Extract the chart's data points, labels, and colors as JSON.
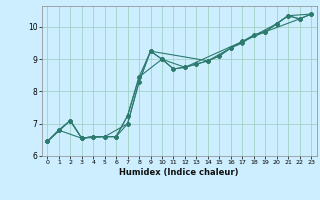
{
  "title": "",
  "xlabel": "Humidex (Indice chaleur)",
  "background_color": "#cceeff",
  "grid_color": "#99ccbb",
  "line_color": "#2d7a6e",
  "xlim": [
    -0.5,
    23.5
  ],
  "ylim": [
    6.0,
    10.65
  ],
  "xticks": [
    0,
    1,
    2,
    3,
    4,
    5,
    6,
    7,
    8,
    9,
    10,
    11,
    12,
    13,
    14,
    15,
    16,
    17,
    18,
    19,
    20,
    21,
    22,
    23
  ],
  "yticks": [
    6,
    7,
    8,
    9,
    10
  ],
  "series1": [
    [
      0,
      6.45
    ],
    [
      1,
      6.8
    ],
    [
      2,
      7.1
    ],
    [
      3,
      6.55
    ],
    [
      4,
      6.6
    ],
    [
      5,
      6.6
    ],
    [
      6,
      6.6
    ],
    [
      7,
      7.25
    ],
    [
      8,
      8.45
    ],
    [
      9,
      9.25
    ],
    [
      10,
      9.0
    ],
    [
      11,
      8.7
    ],
    [
      12,
      8.75
    ],
    [
      13,
      8.85
    ],
    [
      14,
      8.95
    ],
    [
      15,
      9.1
    ],
    [
      16,
      9.35
    ],
    [
      17,
      9.55
    ],
    [
      18,
      9.75
    ],
    [
      19,
      9.85
    ],
    [
      20,
      10.1
    ],
    [
      21,
      10.35
    ],
    [
      22,
      10.25
    ],
    [
      23,
      10.4
    ]
  ],
  "series2": [
    [
      0,
      6.45
    ],
    [
      1,
      6.8
    ],
    [
      2,
      7.1
    ],
    [
      3,
      6.55
    ],
    [
      4,
      6.6
    ],
    [
      5,
      6.6
    ],
    [
      6,
      6.6
    ],
    [
      7,
      7.0
    ],
    [
      8,
      8.3
    ],
    [
      9,
      9.25
    ],
    [
      10,
      9.0
    ],
    [
      11,
      8.7
    ],
    [
      12,
      8.75
    ],
    [
      13,
      8.85
    ],
    [
      14,
      8.95
    ],
    [
      15,
      9.1
    ],
    [
      16,
      9.35
    ],
    [
      17,
      9.5
    ],
    [
      18,
      9.75
    ],
    [
      19,
      9.85
    ],
    [
      20,
      10.1
    ],
    [
      21,
      10.35
    ],
    [
      22,
      10.25
    ],
    [
      23,
      10.4
    ]
  ],
  "series3": [
    [
      0,
      6.45
    ],
    [
      2,
      7.1
    ],
    [
      3,
      6.55
    ],
    [
      5,
      6.6
    ],
    [
      7,
      7.0
    ],
    [
      8,
      8.3
    ],
    [
      9,
      9.25
    ],
    [
      14,
      8.95
    ],
    [
      16,
      9.35
    ],
    [
      20,
      10.1
    ],
    [
      21,
      10.35
    ],
    [
      23,
      10.4
    ]
  ],
  "series4": [
    [
      0,
      6.45
    ],
    [
      1,
      6.8
    ],
    [
      3,
      6.55
    ],
    [
      4,
      6.6
    ],
    [
      6,
      6.6
    ],
    [
      7,
      7.25
    ],
    [
      8,
      8.45
    ],
    [
      10,
      9.0
    ],
    [
      12,
      8.75
    ],
    [
      17,
      9.55
    ],
    [
      19,
      9.85
    ],
    [
      22,
      10.25
    ]
  ]
}
